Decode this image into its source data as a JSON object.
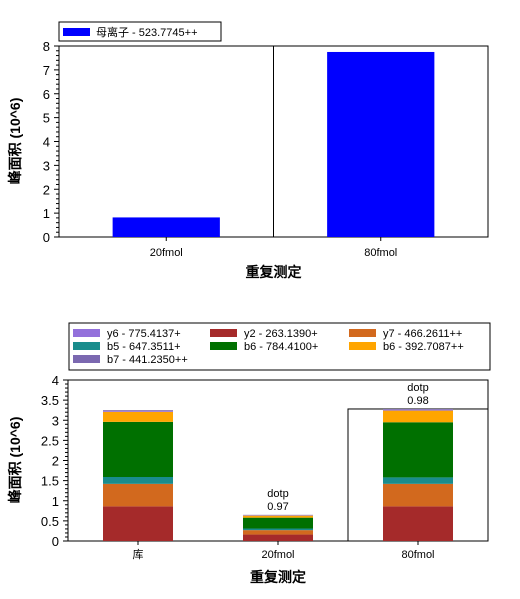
{
  "chart_data": [
    {
      "type": "bar",
      "categories": [
        "20fmol",
        "80fmol"
      ],
      "series": [
        {
          "name": "母离子 - 523.7745++",
          "color": "#0000ff",
          "values": [
            0.82,
            7.75
          ]
        }
      ],
      "xlabel": "重复测定",
      "ylabel": "峰面积 (10^6)",
      "ylim": [
        0,
        8
      ],
      "yticks": [
        0,
        1,
        2,
        3,
        4,
        5,
        6,
        7,
        8
      ],
      "legend_placement": "top-left",
      "selected_category": "80fmol"
    },
    {
      "type": "bar",
      "stacked": true,
      "categories": [
        "库",
        "20fmol",
        "80fmol"
      ],
      "series": [
        {
          "name": "y2 - 263.1390+",
          "color": "#a52a2a",
          "values": [
            0.86,
            0.16,
            0.86
          ]
        },
        {
          "name": "y7 - 466.2611++",
          "color": "#d2691e",
          "values": [
            0.56,
            0.11,
            0.56
          ]
        },
        {
          "name": "b5 - 647.3511+",
          "color": "#198c8c",
          "values": [
            0.17,
            0.04,
            0.16
          ]
        },
        {
          "name": "b6 - 784.4100+",
          "color": "#007000",
          "values": [
            1.37,
            0.27,
            1.37
          ]
        },
        {
          "name": "b6 - 392.7087++",
          "color": "#ffa500",
          "values": [
            0.25,
            0.05,
            0.29
          ]
        },
        {
          "name": "y6 - 775.4137+",
          "color": "#9370db",
          "values": [
            0.02,
            0.01,
            0.02
          ]
        },
        {
          "name": "b7 - 441.2350++",
          "color": "#7b68b0",
          "values": [
            0.02,
            0.01,
            0.02
          ]
        }
      ],
      "legend_order": [
        "y6 - 775.4137+",
        "y2 - 263.1390+",
        "y7 - 466.2611++",
        "b5 - 647.3511+",
        "b6 - 784.4100+",
        "b6 - 392.7087++",
        "b7 - 441.2350++"
      ],
      "annotations": [
        {
          "category": "20fmol",
          "label": "dotp",
          "value": "0.97"
        },
        {
          "category": "80fmol",
          "label": "dotp",
          "value": "0.98"
        }
      ],
      "xlabel": "重复测定",
      "ylabel": "峰面积 (10^6)",
      "ylim": [
        0,
        4
      ],
      "yticks": [
        0,
        0.5,
        1,
        1.5,
        2,
        2.5,
        3,
        3.5,
        4
      ],
      "legend_placement": "top",
      "selected_category": "80fmol"
    }
  ]
}
